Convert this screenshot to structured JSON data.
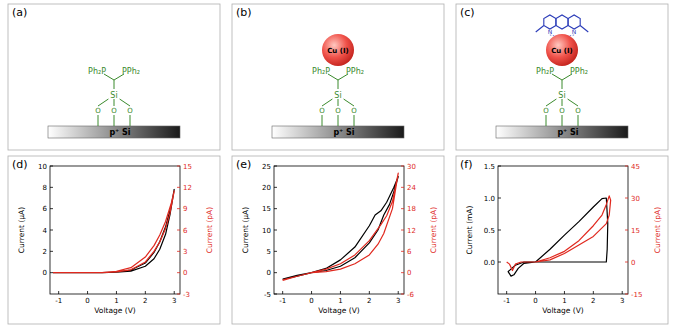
{
  "schematics": [
    {
      "label": "(a)",
      "substrate": "p⁺ Si",
      "atoms": {
        "si": "Si",
        "o": "O",
        "left_p": "Ph₂P",
        "right_p": "PPh₂"
      }
    },
    {
      "label": "(b)",
      "substrate": "p⁺ Si",
      "atoms": {
        "si": "Si",
        "o": "O",
        "left_p": "Ph₂P",
        "right_p": "PPh₂"
      },
      "metal": "Cu (I)"
    },
    {
      "label": "(c)",
      "substrate": "p⁺ Si",
      "atoms": {
        "si": "Si",
        "o": "O",
        "left_p": "Ph₂P",
        "right_p": "PPh₂"
      },
      "metal": "Cu (I)",
      "ligand_atoms": [
        "N",
        "N"
      ]
    }
  ],
  "chart_data": [
    {
      "type": "line",
      "title": "(d)",
      "x_label": "Voltage (V)",
      "y_label": "Current (μA)",
      "y2_label": "Current (pA)",
      "xlim": [
        -1.3,
        3.2
      ],
      "xticks": [
        -1,
        0,
        1,
        2,
        3
      ],
      "ylim": [
        -2,
        10
      ],
      "yticks": [
        0,
        2,
        4,
        6,
        8,
        10
      ],
      "y2lim": [
        -3,
        15
      ],
      "y2ticks": [
        -3,
        0,
        3,
        6,
        9,
        12,
        15
      ],
      "grid": false,
      "series": [
        {
          "color": "#000000",
          "axis": "y",
          "x": [
            -1.2,
            -0.5,
            0,
            0.5,
            1,
            1.5,
            2,
            2.3,
            2.5,
            2.7,
            2.85,
            3,
            2.9,
            2.7,
            2.5,
            2.3,
            2,
            1.5,
            1,
            0.5,
            0,
            -0.5,
            -1.2
          ],
          "values": [
            0,
            0,
            0,
            0,
            0.05,
            0.15,
            0.6,
            1.3,
            2.2,
            3.6,
            5.4,
            7.8,
            6.3,
            4.3,
            2.9,
            1.9,
            0.9,
            0.25,
            0.05,
            0,
            0,
            0,
            0
          ]
        },
        {
          "color": "#e0281e",
          "axis": "y2",
          "x": [
            -1.2,
            -0.5,
            0,
            0.5,
            1,
            1.5,
            2,
            2.3,
            2.5,
            2.7,
            2.85,
            3,
            2.9,
            2.7,
            2.5,
            2.3,
            2,
            1.5,
            1,
            0.5,
            0,
            -0.5,
            -1.2
          ],
          "values": [
            0,
            0,
            0,
            0,
            0.1,
            0.4,
            1.5,
            3,
            4.3,
            6.2,
            8.3,
            11.5,
            9.8,
            7.2,
            5.3,
            3.8,
            2.2,
            0.7,
            0.2,
            0,
            0,
            0,
            0
          ]
        }
      ]
    },
    {
      "type": "line",
      "title": "(e)",
      "x_label": "Voltage (V)",
      "y_label": "Current (μA)",
      "y2_label": "Current (pA)",
      "xlim": [
        -1.3,
        3.2
      ],
      "xticks": [
        -1,
        0,
        1,
        2,
        3
      ],
      "ylim": [
        -5,
        25
      ],
      "yticks": [
        -5,
        0,
        5,
        10,
        15,
        20,
        25
      ],
      "y2lim": [
        -6,
        30
      ],
      "y2ticks": [
        -6,
        0,
        6,
        12,
        18,
        24,
        30
      ],
      "grid": false,
      "series": [
        {
          "color": "#000000",
          "axis": "y",
          "x": [
            -1,
            -0.5,
            0,
            0.5,
            1,
            1.5,
            2,
            2.3,
            2.5,
            2.7,
            2.85,
            3,
            2.85,
            2.6,
            2.4,
            2.2,
            2,
            1.5,
            1,
            0.5,
            0,
            -0.5,
            -1
          ],
          "values": [
            -1.5,
            -0.6,
            0,
            0.5,
            1.5,
            3.5,
            7,
            10,
            13.5,
            16,
            19,
            22.5,
            20,
            16.5,
            14.5,
            13.5,
            11,
            6,
            3,
            1,
            0,
            -0.8,
            -1.6
          ]
        },
        {
          "color": "#e0281e",
          "axis": "y2",
          "x": [
            -1,
            -0.5,
            0,
            0.5,
            1,
            1.5,
            2,
            2.3,
            2.5,
            2.8,
            3,
            2.8,
            2.6,
            2.4,
            2,
            1.5,
            1,
            0.5,
            0,
            -0.5,
            -1
          ],
          "values": [
            -2,
            -1,
            0,
            0.3,
            1,
            2.5,
            5,
            8,
            11,
            18,
            28,
            20,
            16,
            13.5,
            9,
            5,
            2.5,
            1,
            0,
            -1,
            -2.2
          ]
        }
      ]
    },
    {
      "type": "line",
      "title": "(f)",
      "x_label": "Voltage (V)",
      "y_label": "Current (mA)",
      "y2_label": "Current (pA)",
      "xlim": [
        -1.3,
        3.2
      ],
      "xticks": [
        -1,
        0,
        1,
        2,
        3
      ],
      "ylim": [
        -0.5,
        1.5
      ],
      "yticks": [
        {
          "value": 0,
          "label": "0.0"
        },
        {
          "value": 0.5,
          "label": "0.5"
        },
        {
          "value": 1,
          "label": "1.0"
        },
        {
          "value": 1.5,
          "label": "1.5"
        }
      ],
      "y2lim": [
        -15,
        45
      ],
      "y2ticks": [
        -15,
        0,
        15,
        30,
        45
      ],
      "grid": false,
      "series": [
        {
          "color": "#000000",
          "axis": "y",
          "x": [
            0,
            0.5,
            1,
            1.5,
            2,
            2.3,
            2.45,
            2.5,
            2.48,
            2.45,
            2,
            1.5,
            1,
            0.5,
            0,
            -0.4,
            -0.6,
            -0.75,
            -0.85,
            -0.95,
            -0.7,
            -0.4,
            0
          ],
          "values": [
            0,
            0.2,
            0.42,
            0.63,
            0.86,
            0.99,
            1.0,
            0.6,
            0.2,
            0,
            0,
            0,
            0,
            0,
            0,
            -0.02,
            -0.1,
            -0.2,
            -0.22,
            -0.15,
            -0.05,
            0,
            0
          ]
        },
        {
          "color": "#e0281e",
          "axis": "y2",
          "x": [
            0,
            0.5,
            1,
            1.5,
            2,
            2.3,
            2.45,
            2.55,
            2.6,
            2.55,
            2.45,
            2.3,
            2,
            1.5,
            1,
            0.5,
            0,
            -0.5,
            -0.7,
            -0.8,
            -0.9,
            -1
          ],
          "values": [
            0,
            2,
            5,
            10,
            17,
            22,
            27,
            31,
            29,
            22,
            18,
            16,
            12,
            8,
            4,
            1,
            0,
            0,
            -1,
            -4,
            -1,
            0
          ]
        }
      ]
    }
  ]
}
